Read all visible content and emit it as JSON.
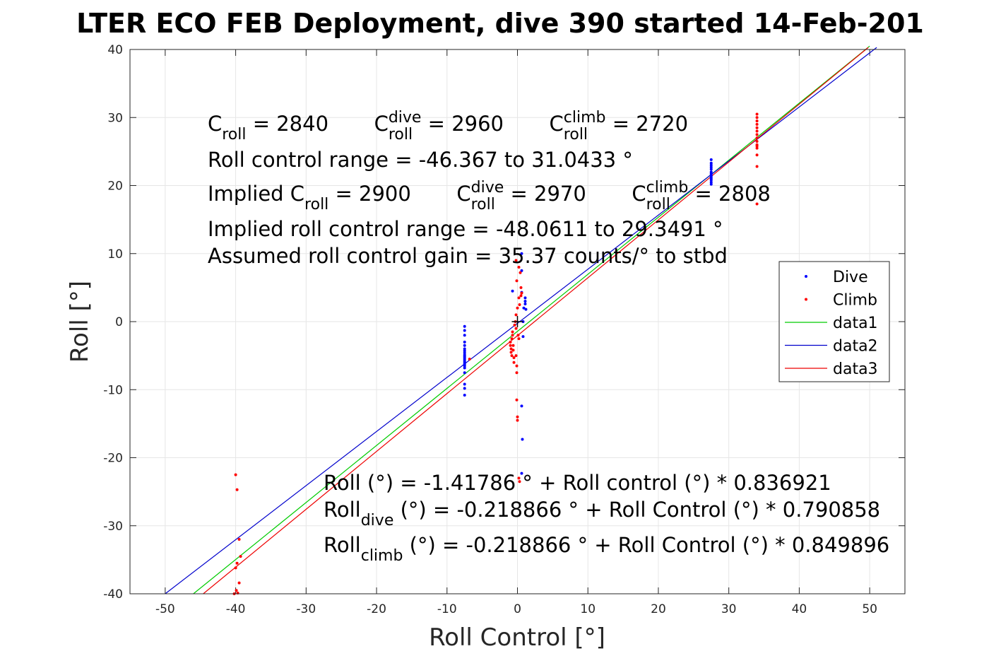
{
  "chart_data": {
    "type": "scatter",
    "title": "LTER ECO FEB Deployment, dive 390 started 14-Feb-201",
    "xlabel": "Roll Control [°]",
    "ylabel": "Roll [°]",
    "xlim": [
      -55,
      55
    ],
    "ylim": [
      -40,
      40
    ],
    "xticks": [
      -50,
      -40,
      -30,
      -20,
      -10,
      0,
      10,
      20,
      30,
      40,
      50
    ],
    "yticks": [
      -40,
      -30,
      -20,
      -10,
      0,
      10,
      20,
      30,
      40
    ],
    "grid": true,
    "legend_position": "right",
    "legend": [
      "Dive",
      "Climb",
      "data1",
      "data2",
      "data3"
    ],
    "series": [
      {
        "name": "Dive",
        "kind": "points",
        "color": "#0000ff",
        "x": [
          -7.5,
          -7.5,
          -7.5,
          -7.5,
          -7.5,
          -7.5,
          -7.5,
          -7.5,
          -7.5,
          -7.5,
          -7.5,
          -7.5,
          -7.5,
          -7.5,
          -7.5,
          -7.5,
          -7.5,
          -7.5,
          -7.5,
          -7.5,
          -7.5,
          -7.5,
          -0.7,
          0.6,
          0.6,
          0.6,
          0.8,
          0.8,
          0.9,
          1.1,
          1.1,
          1.1,
          1.2,
          0.6,
          0.7,
          0.6,
          27.5,
          27.5,
          27.5,
          27.5,
          27.5,
          27.5,
          27.5,
          27.5,
          27.5,
          27.5,
          27.5,
          27.5,
          27.5,
          27.5
        ],
        "y": [
          -0.7,
          -1.3,
          -2.0,
          -3.0,
          -3.5,
          -4.0,
          -4.3,
          -4.6,
          -4.9,
          -5.1,
          -5.3,
          -5.5,
          -5.7,
          -5.9,
          -6.1,
          -6.3,
          -6.5,
          -6.8,
          -7.5,
          -9.2,
          -9.8,
          -10.8,
          4.5,
          7.5,
          10.0,
          4.3,
          0.0,
          -2.2,
          2.0,
          3.5,
          3.0,
          2.6,
          1.8,
          -12.4,
          -17.3,
          -22.3,
          23.8,
          23.3,
          23.0,
          22.7,
          22.4,
          22.0,
          21.8,
          21.6,
          21.4,
          21.2,
          21.0,
          20.8,
          20.5,
          20.2
        ]
      },
      {
        "name": "Climb",
        "kind": "points",
        "color": "#ff0000",
        "x": [
          -6.8,
          -1.0,
          -1.0,
          -0.9,
          -0.9,
          -0.8,
          -0.8,
          -0.7,
          -0.7,
          -0.6,
          -0.6,
          -0.5,
          -0.5,
          -0.4,
          -0.3,
          -0.2,
          -0.2,
          -0.2,
          -0.1,
          -0.1,
          -0.1,
          0.0,
          0.0,
          0.1,
          0.2,
          0.2,
          0.3,
          0.4,
          0.5,
          0.6,
          0.5,
          -0.2,
          -0.1,
          0.0,
          0.2,
          0.2,
          0.3,
          -40.0,
          -39.8,
          -39.5,
          -40.0,
          -39.8,
          -39.5,
          -39.7,
          -39.3,
          -40.2,
          -39.9,
          34.0,
          34.0,
          34.0,
          34.0,
          34.0,
          34.0,
          34.0,
          34.0,
          34.0,
          34.0,
          34.0,
          34.0,
          34.0,
          34.0,
          34.0
        ],
        "y": [
          -5.5,
          -3.0,
          -3.5,
          -4.0,
          -4.5,
          -5.0,
          -2.5,
          -2.0,
          -1.5,
          -3.5,
          -4.2,
          -5.3,
          -6.0,
          -0.5,
          0.0,
          1.0,
          -1.0,
          -5.0,
          -6.5,
          -7.5,
          -11.5,
          -14.0,
          -14.5,
          -2.0,
          3.5,
          8.0,
          2.5,
          7.2,
          5.0,
          4.2,
          3.8,
          9.0,
          6.0,
          2.0,
          -2.5,
          -23.0,
          -23.5,
          -22.5,
          -24.7,
          -32.0,
          -36.2,
          -35.5,
          -38.4,
          -39.9,
          -34.5,
          -40.0,
          -39.5,
          30.5,
          30.0,
          29.5,
          29.0,
          28.5,
          28.0,
          27.5,
          27.0,
          26.5,
          26.0,
          25.8,
          25.5,
          24.5,
          22.8,
          17.3
        ]
      },
      {
        "name": "data1",
        "kind": "line",
        "color": "#00cc00",
        "x": [
          -46.0,
          50.0
        ],
        "y": [
          -40.0,
          40.5
        ]
      },
      {
        "name": "data2",
        "kind": "line",
        "color": "#0000cc",
        "x": [
          -50.0,
          51.0
        ],
        "y": [
          -40.0,
          40.3
        ]
      },
      {
        "name": "data3",
        "kind": "line",
        "color": "#ee0000",
        "x": [
          -44.6,
          49.8
        ],
        "y": [
          -40.0,
          40.3
        ]
      }
    ],
    "origin_marker": {
      "x": 0,
      "y": 0,
      "color": "#000000"
    }
  },
  "annotations": {
    "top": [
      [
        {
          "t": "C"
        },
        {
          "t": "roll",
          "sub": true
        },
        {
          "t": " = 2840       C"
        },
        {
          "t": "dive",
          "sup": true
        },
        {
          "t": "roll",
          "sub": true
        },
        {
          "t": " = 2960       C"
        },
        {
          "t": "climb",
          "sup": true
        },
        {
          "t": "roll",
          "sub": true
        },
        {
          "t": " = 2720"
        }
      ],
      [
        {
          "t": "Roll control range = -46.367 to 31.0433 °"
        }
      ],
      [
        {
          "t": "Implied C"
        },
        {
          "t": "roll",
          "sub": true
        },
        {
          "t": " = 2900       C"
        },
        {
          "t": "dive",
          "sup": true
        },
        {
          "t": "roll",
          "sub": true
        },
        {
          "t": " = 2970       C"
        },
        {
          "t": "climb",
          "sup": true
        },
        {
          "t": "roll",
          "sub": true
        },
        {
          "t": " = 2808"
        }
      ],
      [
        {
          "t": "Implied roll control range = -48.0611 to 29.3491 °"
        }
      ],
      [
        {
          "t": "Assumed roll control gain = 35.37 counts/° to stbd"
        }
      ]
    ],
    "bottom": [
      [
        {
          "t": "Roll (°) = -1.41786 ° + Roll control (°) * 0.836921"
        }
      ],
      [
        {
          "t": "Roll"
        },
        {
          "t": "dive",
          "sub": true
        },
        {
          "t": " (°) = -0.218866 ° + Roll Control (°) * 0.790858"
        }
      ],
      [
        {
          "t": "Roll"
        },
        {
          "t": "climb",
          "sub": true
        },
        {
          "t": " (°) = -0.218866 ° + Roll Control (°) * 0.849896"
        }
      ]
    ]
  }
}
